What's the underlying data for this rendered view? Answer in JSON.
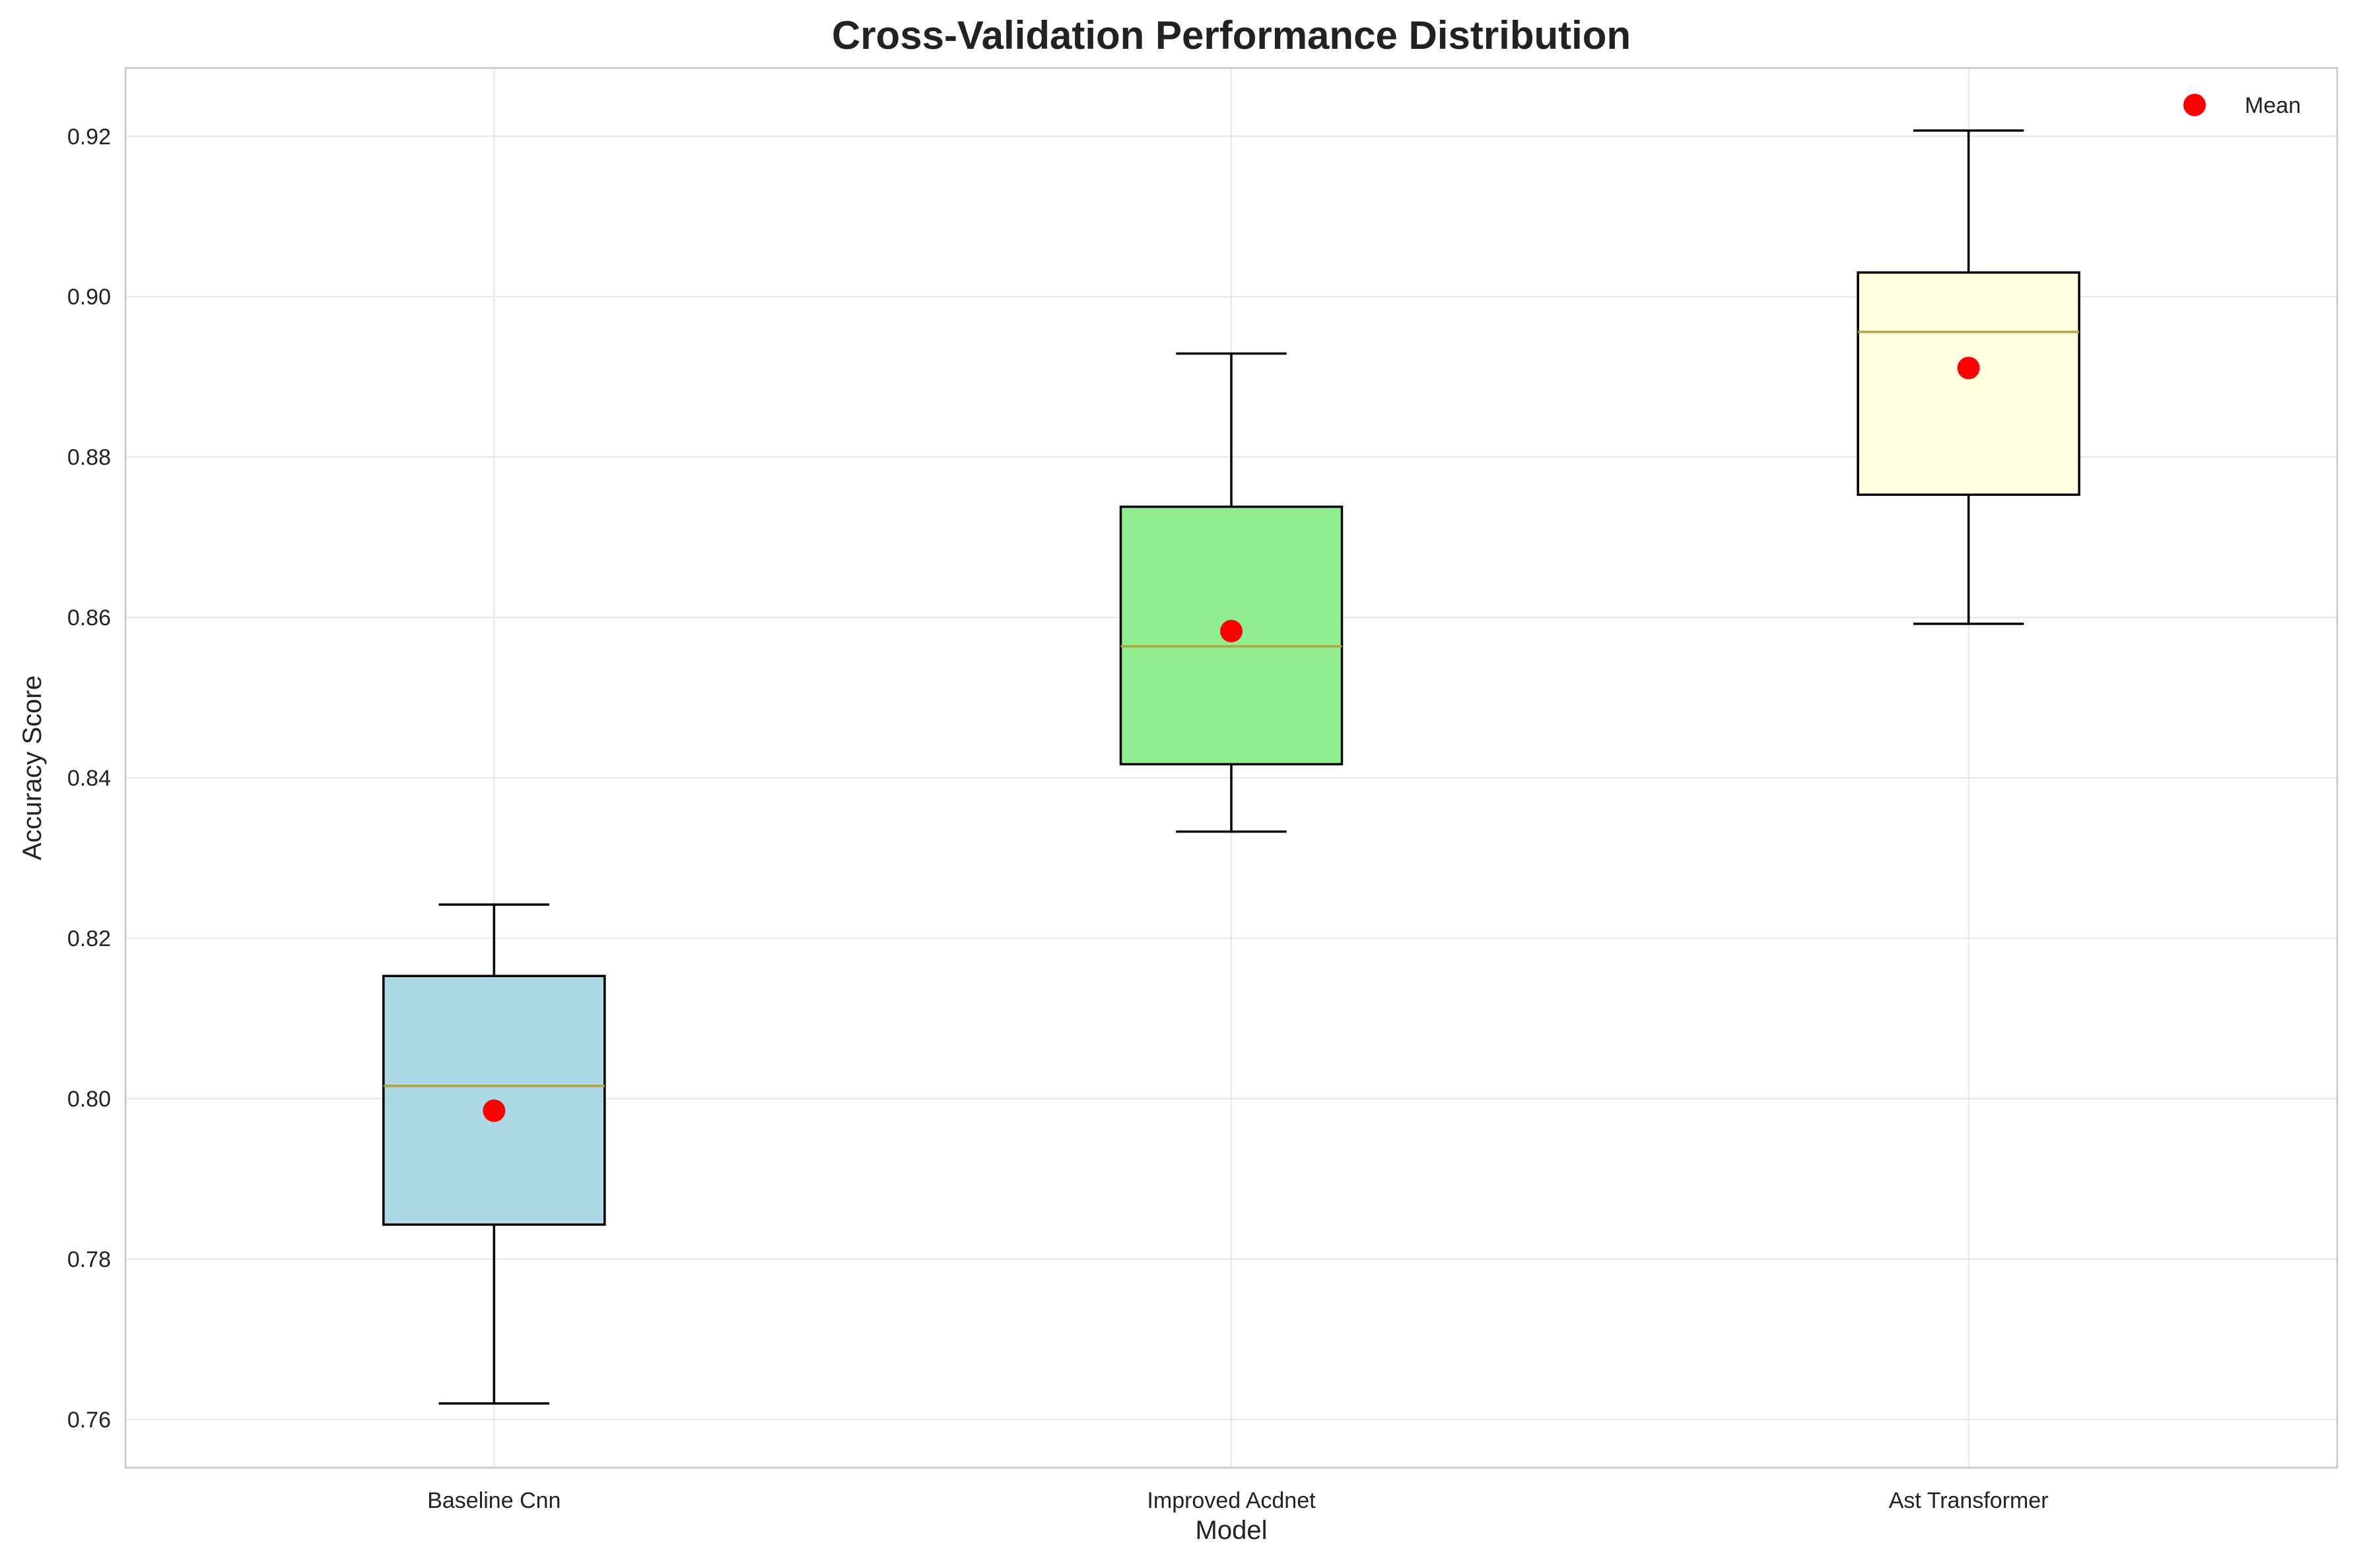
{
  "chart_data": {
    "type": "box",
    "title": "Cross-Validation Performance Distribution",
    "xlabel": "Model",
    "ylabel": "Accuracy Score",
    "ylim": [
      0.754,
      0.9285
    ],
    "yticks": [
      0.76,
      0.78,
      0.8,
      0.82,
      0.84,
      0.86,
      0.88,
      0.9,
      0.92
    ],
    "ytick_labels": [
      "0.76",
      "0.78",
      "0.80",
      "0.82",
      "0.84",
      "0.86",
      "0.88",
      "0.90",
      "0.92"
    ],
    "categories": [
      "Baseline Cnn",
      "Improved Acdnet",
      "Ast Transformer"
    ],
    "boxes": [
      {
        "category": "Baseline Cnn",
        "whisker_low": 0.762,
        "q1": 0.7843,
        "median": 0.8016,
        "q3": 0.8153,
        "whisker_high": 0.8242,
        "mean": 0.7985,
        "color": "#add8e6"
      },
      {
        "category": "Improved Acdnet",
        "whisker_low": 0.8333,
        "q1": 0.8417,
        "median": 0.8564,
        "q3": 0.8738,
        "whisker_high": 0.8929,
        "mean": 0.8583,
        "color": "#90ee90"
      },
      {
        "category": "Ast Transformer",
        "whisker_low": 0.8592,
        "q1": 0.8753,
        "median": 0.8956,
        "q3": 0.903,
        "whisker_high": 0.9207,
        "mean": 0.8911,
        "color": "#ffffe0"
      }
    ],
    "mean_marker_color": "#ff0000",
    "median_color": "#b5a040",
    "legend": {
      "position": "top-right",
      "entries": [
        "Mean"
      ]
    },
    "grid": true
  }
}
